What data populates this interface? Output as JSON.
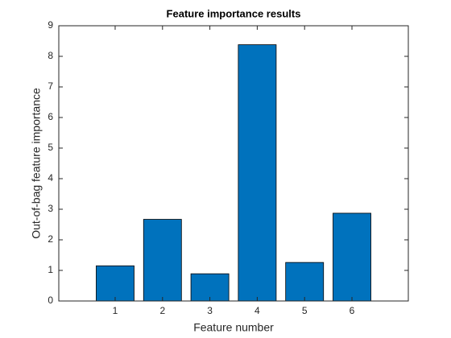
{
  "chart_data": {
    "type": "bar",
    "title": "Feature importance results",
    "xlabel": "Feature number",
    "ylabel": "Out-of-bag feature importance",
    "categories": [
      "1",
      "2",
      "3",
      "4",
      "5",
      "6"
    ],
    "values": [
      1.15,
      2.67,
      0.89,
      8.38,
      1.26,
      2.87
    ],
    "color": "#0072bd",
    "ylim": [
      0,
      9
    ],
    "yticks": [
      0,
      1,
      2,
      3,
      4,
      5,
      6,
      7,
      8,
      9
    ],
    "grid": false
  }
}
